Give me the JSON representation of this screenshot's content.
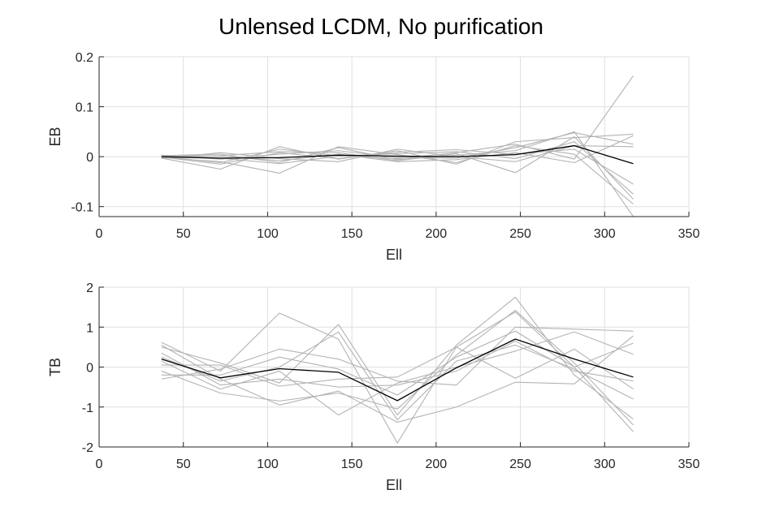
{
  "figure": {
    "title": "Unlensed LCDM, No purification"
  },
  "colors": {
    "background": "#ffffff",
    "grid": "#dfdfdf",
    "axis": "#262626",
    "sample_line": "#b3b3b3",
    "mean_line": "#000000"
  },
  "chart_data": [
    {
      "type": "line",
      "title": "Unlensed LCDM, No purification",
      "xlabel": "Ell",
      "ylabel": "EB",
      "xlim": [
        0,
        350
      ],
      "ylim": [
        -0.12,
        0.2
      ],
      "xticks": [
        0,
        50,
        100,
        150,
        200,
        250,
        300,
        350
      ],
      "yticks": [
        -0.1,
        0,
        0.1,
        0.2
      ],
      "ytick_labels": [
        "-0.1",
        "0",
        "0.1",
        "0.2"
      ],
      "grid": true,
      "x": [
        37,
        72,
        107,
        142,
        177,
        212,
        247,
        282,
        317
      ],
      "series": [
        {
          "role": "sample",
          "values": [
            0.002,
            0.005,
            -0.012,
            0.018,
            -0.006,
            0.003,
            0.012,
            0.05,
            -0.12
          ]
        },
        {
          "role": "sample",
          "values": [
            -0.003,
            -0.025,
            0.02,
            -0.005,
            0.012,
            -0.015,
            0.03,
            0.038,
            0.045
          ]
        },
        {
          "role": "sample",
          "values": [
            0.001,
            0.002,
            0.01,
            0.008,
            -0.008,
            0.006,
            -0.032,
            0.04,
            -0.085
          ]
        },
        {
          "role": "sample",
          "values": [
            -0.002,
            -0.01,
            -0.033,
            0.02,
            0.004,
            -0.012,
            0.022,
            0.005,
            -0.095
          ]
        },
        {
          "role": "sample",
          "values": [
            0.0,
            -0.012,
            0.015,
            0.002,
            -0.004,
            0.008,
            0.025,
            -0.005,
            0.162
          ]
        },
        {
          "role": "sample",
          "values": [
            -0.004,
            0.008,
            -0.004,
            -0.01,
            0.015,
            0.0,
            -0.01,
            0.022,
            0.02
          ]
        },
        {
          "role": "sample",
          "values": [
            0.003,
            -0.005,
            0.005,
            0.012,
            -0.002,
            -0.003,
            0.018,
            0.048,
            0.025
          ]
        },
        {
          "role": "sample",
          "values": [
            -0.001,
            -0.015,
            0.008,
            -0.004,
            0.009,
            0.014,
            0.005,
            0.015,
            -0.055
          ]
        },
        {
          "role": "sample",
          "values": [
            0.002,
            0.001,
            -0.008,
            0.005,
            -0.01,
            -0.006,
            0.008,
            -0.012,
            0.042
          ]
        },
        {
          "role": "sample",
          "values": [
            -0.001,
            -0.003,
            -0.014,
            0.001,
            0.006,
            0.01,
            -0.004,
            0.03,
            -0.075
          ]
        },
        {
          "role": "mean",
          "values": [
            0.0,
            -0.003,
            -0.002,
            0.003,
            0.001,
            0.0,
            0.004,
            0.022,
            -0.014
          ]
        }
      ]
    },
    {
      "type": "line",
      "xlabel": "Ell",
      "ylabel": "TB",
      "xlim": [
        0,
        350
      ],
      "ylim": [
        -2,
        2
      ],
      "xticks": [
        0,
        50,
        100,
        150,
        200,
        250,
        300,
        350
      ],
      "yticks": [
        -2,
        -1,
        0,
        1,
        2
      ],
      "ytick_labels": [
        "-2",
        "-1",
        "0",
        "1",
        "2"
      ],
      "grid": true,
      "x": [
        37,
        72,
        107,
        142,
        177,
        212,
        247,
        282,
        317
      ],
      "series": [
        {
          "role": "sample",
          "values": [
            0.62,
            -0.1,
            1.35,
            0.7,
            -1.9,
            0.5,
            1.38,
            0.0,
            -1.62
          ]
        },
        {
          "role": "sample",
          "values": [
            0.5,
            0.1,
            -0.4,
            1.07,
            -1.2,
            0.55,
            1.75,
            -0.2,
            -1.3
          ]
        },
        {
          "role": "sample",
          "values": [
            -0.3,
            -0.05,
            0.45,
            0.2,
            -0.35,
            -0.45,
            1.0,
            0.95,
            0.9
          ]
        },
        {
          "role": "sample",
          "values": [
            0.15,
            -0.55,
            -0.1,
            -1.2,
            -0.4,
            0.0,
            0.4,
            0.88,
            0.32
          ]
        },
        {
          "role": "sample",
          "values": [
            -0.1,
            -0.65,
            -0.85,
            -0.65,
            -1.05,
            0.3,
            1.42,
            0.1,
            -1.45
          ]
        },
        {
          "role": "sample",
          "values": [
            0.25,
            -0.35,
            0.0,
            0.88,
            -1.32,
            0.15,
            0.55,
            -0.05,
            -0.8
          ]
        },
        {
          "role": "sample",
          "values": [
            0.55,
            -0.3,
            -0.95,
            -0.6,
            -1.38,
            -1.0,
            -0.38,
            -0.42,
            0.78
          ]
        },
        {
          "role": "sample",
          "values": [
            0.05,
            0.05,
            -0.48,
            -0.3,
            -0.25,
            0.5,
            -0.28,
            0.45,
            -0.55
          ]
        },
        {
          "role": "sample",
          "values": [
            -0.2,
            -0.2,
            0.25,
            -0.05,
            -0.7,
            0.25,
            0.9,
            0.0,
            0.6
          ]
        },
        {
          "role": "sample",
          "values": [
            0.35,
            -0.45,
            -0.3,
            -0.5,
            -0.45,
            -0.1,
            0.65,
            -0.1,
            -0.35
          ]
        },
        {
          "role": "mean",
          "values": [
            0.2,
            -0.27,
            -0.04,
            -0.13,
            -0.84,
            -0.02,
            0.7,
            0.2,
            -0.25
          ]
        }
      ]
    }
  ]
}
